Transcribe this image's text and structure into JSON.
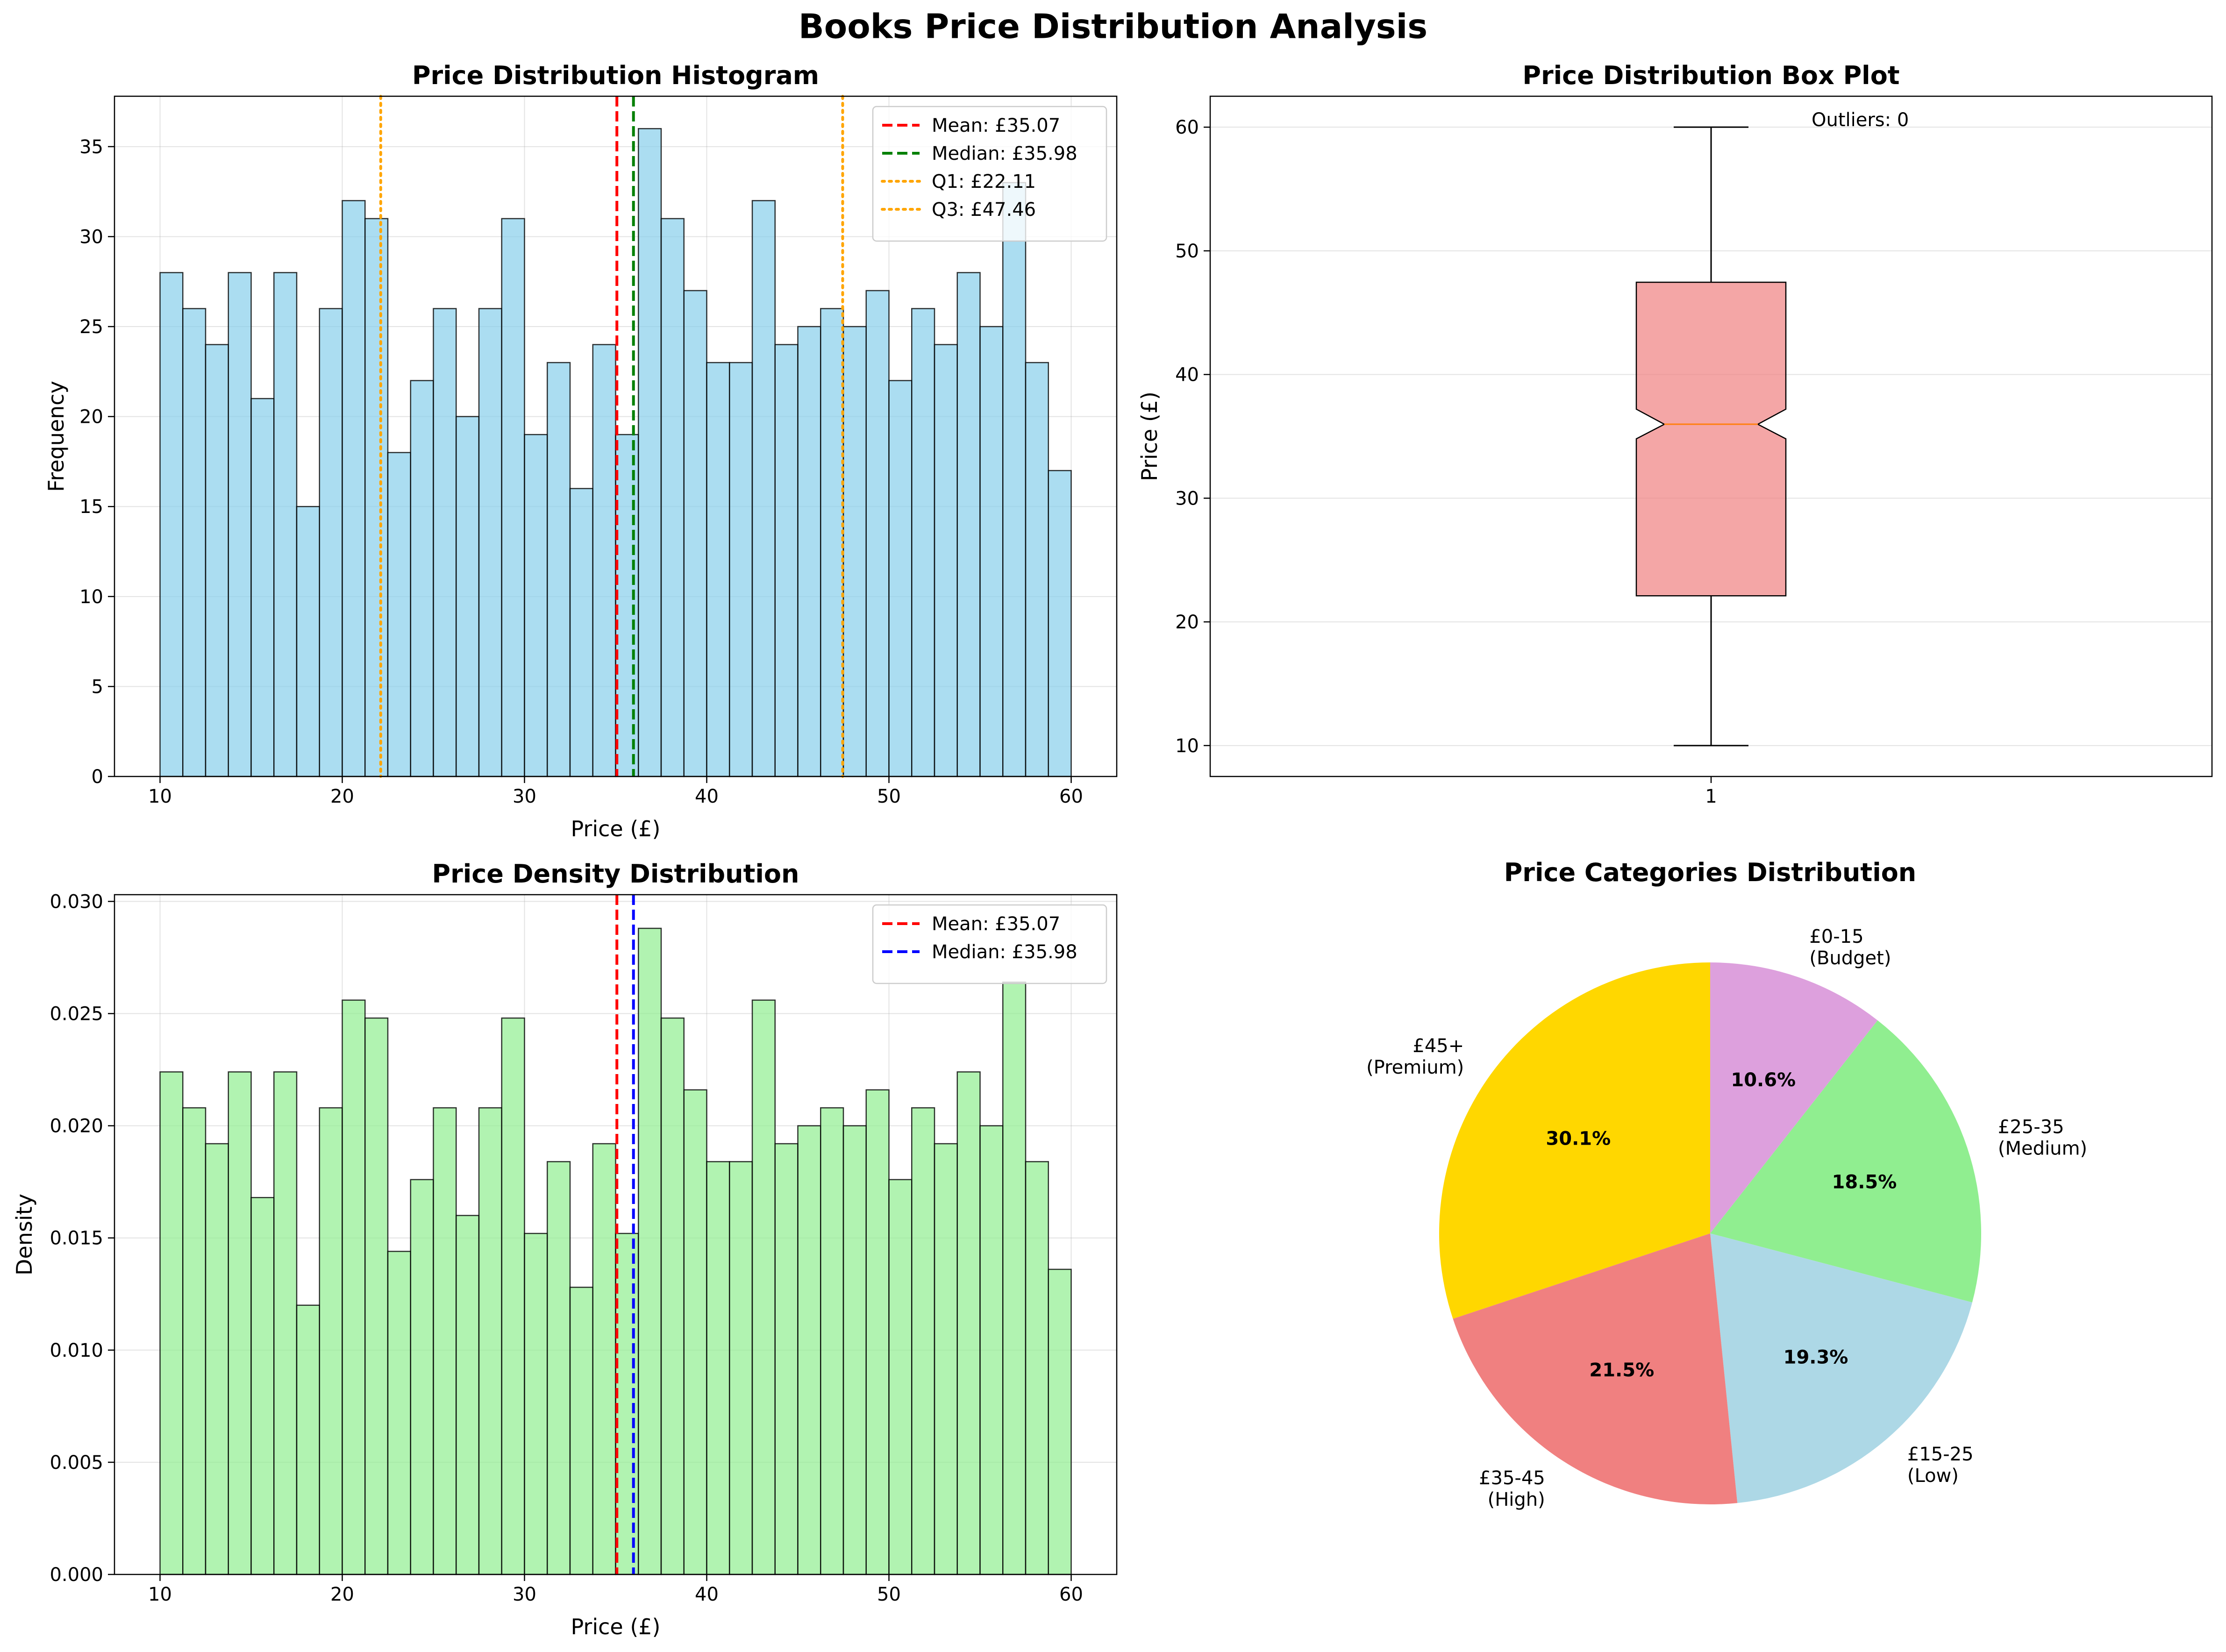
{
  "suptitle": "Books Price Distribution Analysis",
  "colors": {
    "hist_fill": "#87CEEB",
    "density_fill": "#90EE90",
    "box_fill": "#F08080",
    "median_line_box": "#FF7F0E",
    "mean": "#FF0000",
    "median_green": "#008000",
    "median_blue": "#0000FF",
    "quartile": "#FFA500",
    "edge": "#000000",
    "grid": "#B0B0B0"
  },
  "chart_data": [
    {
      "type": "bar",
      "title": "Price Distribution Histogram",
      "xlabel": "Price (£)",
      "ylabel": "Frequency",
      "xlim": [
        7.5,
        62.5
      ],
      "ylim": [
        0,
        37.8
      ],
      "xticks": [
        10,
        20,
        30,
        40,
        50,
        60
      ],
      "yticks": [
        0,
        5,
        10,
        15,
        20,
        25,
        30,
        35
      ],
      "bin_start": 10,
      "bin_width": 1.25,
      "values": [
        28,
        26,
        24,
        28,
        21,
        28,
        15,
        26,
        32,
        31,
        18,
        22,
        26,
        20,
        26,
        31,
        19,
        23,
        16,
        24,
        19,
        36,
        31,
        27,
        23,
        23,
        32,
        24,
        25,
        26,
        25,
        27,
        22,
        26,
        24,
        28,
        25,
        33,
        23,
        17
      ],
      "grid": true,
      "legend_position": "top-right",
      "reference_lines": [
        {
          "label": "Mean: £35.07",
          "x": 35.07,
          "style": "dashed",
          "color": "#FF0000"
        },
        {
          "label": "Median: £35.98",
          "x": 35.98,
          "style": "dashed",
          "color": "#008000"
        },
        {
          "label": "Q1: £22.11",
          "x": 22.11,
          "style": "dotted",
          "color": "#FFA500"
        },
        {
          "label": "Q3: £47.46",
          "x": 47.46,
          "style": "dotted",
          "color": "#FFA500"
        }
      ]
    },
    {
      "type": "box",
      "title": "Price Distribution Box Plot",
      "ylabel": "Price (£)",
      "ylim": [
        7.5,
        62.5
      ],
      "yticks": [
        10,
        20,
        30,
        40,
        50,
        60
      ],
      "xtick_label": "1",
      "whisker_low": 10,
      "q1": 22.11,
      "median": 35.98,
      "q3": 47.46,
      "whisker_high": 60,
      "notch_low": 34.8,
      "notch_high": 37.2,
      "annotation": "Outliers: 0",
      "grid": true
    },
    {
      "type": "bar",
      "title": "Price Density Distribution",
      "xlabel": "Price (£)",
      "ylabel": "Density",
      "xlim": [
        7.5,
        62.5
      ],
      "ylim": [
        0,
        0.0303
      ],
      "xticks": [
        10,
        20,
        30,
        40,
        50,
        60
      ],
      "yticks": [
        "0.000",
        "0.005",
        "0.010",
        "0.015",
        "0.020",
        "0.025",
        "0.030"
      ],
      "bin_start": 10,
      "bin_width": 1.25,
      "values": [
        0.0224,
        0.0208,
        0.0192,
        0.0224,
        0.0168,
        0.0224,
        0.012,
        0.0208,
        0.0256,
        0.0248,
        0.0144,
        0.0176,
        0.0208,
        0.016,
        0.0208,
        0.0248,
        0.0152,
        0.0184,
        0.0128,
        0.0192,
        0.0152,
        0.0288,
        0.0248,
        0.0216,
        0.0184,
        0.0184,
        0.0256,
        0.0192,
        0.02,
        0.0208,
        0.02,
        0.0216,
        0.0176,
        0.0208,
        0.0192,
        0.0224,
        0.02,
        0.0264,
        0.0184,
        0.0136
      ],
      "grid": true,
      "legend_position": "top-right",
      "reference_lines": [
        {
          "label": "Mean: £35.07",
          "x": 35.07,
          "style": "dashed",
          "color": "#FF0000"
        },
        {
          "label": "Median: £35.98",
          "x": 35.98,
          "style": "dashed",
          "color": "#0000FF"
        }
      ]
    },
    {
      "type": "pie",
      "title": "Price Categories Distribution",
      "start_angle": 90,
      "direction": "clockwise",
      "slices": [
        {
          "label": "£0-15\n(Budget)",
          "value": 10.6,
          "pct": "10.6%",
          "color": "#DDA0DD"
        },
        {
          "label": "£25-35\n(Medium)",
          "value": 18.5,
          "pct": "18.5%",
          "color": "#90EE90"
        },
        {
          "label": "£15-25\n(Low)",
          "value": 19.3,
          "pct": "19.3%",
          "color": "#ADD8E6"
        },
        {
          "label": "£35-45\n(High)",
          "value": 21.5,
          "pct": "21.5%",
          "color": "#F08080"
        },
        {
          "label": "£45+\n(Premium)",
          "value": 30.1,
          "pct": "30.1%",
          "color": "#FFD700"
        }
      ]
    }
  ]
}
